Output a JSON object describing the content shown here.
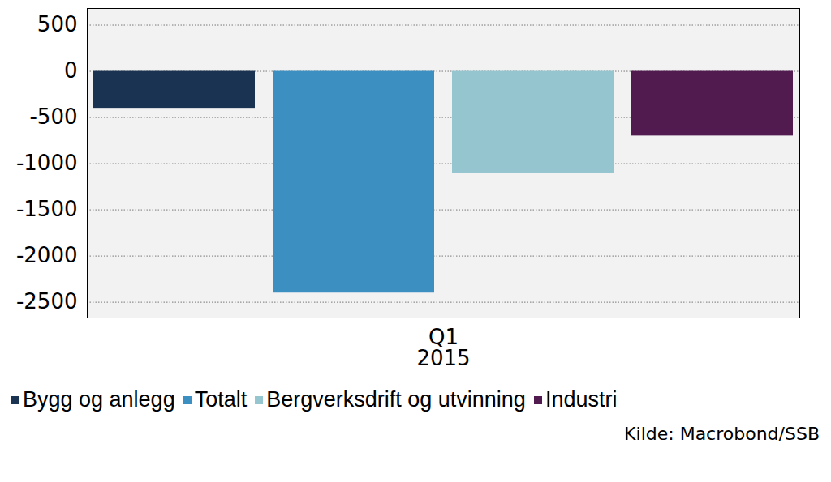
{
  "chart_data": {
    "type": "bar",
    "categories": [
      "Q1\n2015"
    ],
    "series": [
      {
        "name": "Bygg og anlegg",
        "color": "#1b3352",
        "values": [
          -400
        ]
      },
      {
        "name": "Totalt",
        "color": "#3b90c1",
        "values": [
          -2400
        ]
      },
      {
        "name": "Bergverksdrift og utvinning",
        "color": "#95c5cf",
        "values": [
          -1100
        ]
      },
      {
        "name": "Industri",
        "color": "#511b50",
        "values": [
          -700
        ]
      }
    ],
    "ylim": [
      -2670,
      680
    ],
    "yticks": [
      -2500,
      -2000,
      -1500,
      -1000,
      -500,
      0,
      500
    ],
    "grid": true,
    "legend": "bottom",
    "caption": "Kilde: Macrobond/SSB"
  }
}
